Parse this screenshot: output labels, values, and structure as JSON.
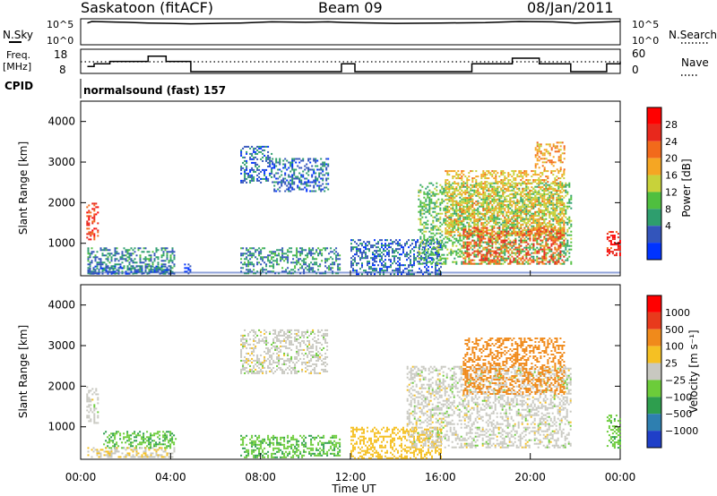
{
  "header": {
    "title": "Saskatoon (fitACF)",
    "beam": "Beam 09",
    "date": "08/Jan/2011"
  },
  "panels": {
    "nsky": {
      "label": "N.Sky",
      "ticks": [
        "10^5",
        "10^0"
      ],
      "right_label": "N.Search",
      "right_ticks": [
        "10^5",
        "10^0"
      ]
    },
    "freq": {
      "label_top": "Freq.",
      "label_bottom": "[MHz]",
      "ticks": [
        "18",
        "8"
      ],
      "right_label": "Nave",
      "right_ticks": [
        "60",
        "0"
      ]
    },
    "cpid": {
      "label": "CPID",
      "value": "normalsound (fast) 157"
    },
    "power": {
      "ylabel": "Slant Range [km]",
      "yticks": [
        "4000",
        "3000",
        "2000",
        "1000"
      ],
      "colorbar_label": "Power [dB]",
      "colorbar_ticks": [
        "28",
        "24",
        "20",
        "16",
        "12",
        "8",
        "4"
      ],
      "colors": [
        "#0033ff",
        "#3355bb",
        "#2e9e6e",
        "#4fbf3f",
        "#c8d23a",
        "#f5a623",
        "#f26a1b",
        "#e8281c",
        "#ff0000"
      ]
    },
    "velocity": {
      "ylabel": "Slant Range [km]",
      "yticks": [
        "4000",
        "3000",
        "2000",
        "1000"
      ],
      "colorbar_label": "Velocity [m s⁻¹]",
      "colorbar_ticks": [
        "1000",
        "500",
        "100",
        "25",
        "−25",
        "−100",
        "−500",
        "−1000"
      ],
      "colors": [
        "#1f3fc8",
        "#2e7fb0",
        "#2e9e4e",
        "#6ccc3a",
        "#c8c8c0",
        "#f5c023",
        "#f08a1b",
        "#e83a1c",
        "#ff0000"
      ]
    }
  },
  "xaxis": {
    "label": "Time UT",
    "ticks": [
      "00:00",
      "04:00",
      "08:00",
      "12:00",
      "16:00",
      "20:00",
      "00:00"
    ]
  },
  "chart_data": {
    "type": "heatmap",
    "title": "Saskatoon (fitACF)",
    "subtitle": "Beam 09  08/Jan/2011",
    "xlabel": "Time UT",
    "ylabel": "Slant Range [km]",
    "xlim": [
      0,
      24
    ],
    "ylim": [
      200,
      4500
    ],
    "power_range_db": [
      0,
      30
    ],
    "velocity_range_ms": [
      -1000,
      1000
    ],
    "nsky_line": [
      [
        0.3,
        5.2
      ],
      [
        0.5,
        5.6
      ],
      [
        2,
        5.4
      ],
      [
        3,
        5.2
      ],
      [
        4,
        5.1
      ],
      [
        4.9,
        5.0
      ],
      [
        7.1,
        5.2
      ],
      [
        8.5,
        5.5
      ],
      [
        10,
        5.4
      ],
      [
        11,
        5.5
      ],
      [
        12,
        5.3
      ],
      [
        14,
        5.1
      ],
      [
        16,
        5.2
      ],
      [
        18,
        5.3
      ],
      [
        19.5,
        5.6
      ],
      [
        21,
        5.5
      ],
      [
        22,
        5.2
      ],
      [
        23,
        5.4
      ],
      [
        24,
        5.6
      ]
    ],
    "freq_steps": [
      [
        0.3,
        10.6
      ],
      [
        0.6,
        12.0
      ],
      [
        1.3,
        13.2
      ],
      [
        2.6,
        13.2
      ],
      [
        3.0,
        15.8
      ],
      [
        3.8,
        13.2
      ],
      [
        4.9,
        8.0
      ],
      [
        7.1,
        8.0
      ],
      [
        9.3,
        8.0
      ],
      [
        11.6,
        12.0
      ],
      [
        12.2,
        8.0
      ],
      [
        17.4,
        12.0
      ],
      [
        19.2,
        14.8
      ],
      [
        20.4,
        12.0
      ],
      [
        21.8,
        8.0
      ],
      [
        23.4,
        12.0
      ],
      [
        24,
        13.2
      ]
    ],
    "power_regions": [
      {
        "t0": 0.25,
        "t1": 0.8,
        "r0": 1100,
        "r1": 2000,
        "level": 26
      },
      {
        "t0": 0.3,
        "t1": 4.2,
        "r0": 250,
        "r1": 900,
        "level": 8
      },
      {
        "t0": 0.3,
        "t1": 4.2,
        "r0": 250,
        "r1": 450,
        "level": 6
      },
      {
        "t0": 4.6,
        "t1": 4.9,
        "r0": 250,
        "r1": 500,
        "level": 4
      },
      {
        "t0": 7.1,
        "t1": 11.5,
        "r0": 250,
        "r1": 900,
        "level": 8
      },
      {
        "t0": 7.1,
        "t1": 8.5,
        "r0": 2500,
        "r1": 3400,
        "level": 6
      },
      {
        "t0": 8.5,
        "t1": 11.0,
        "r0": 2300,
        "r1": 3100,
        "level": 6
      },
      {
        "t0": 12.0,
        "t1": 16.0,
        "r0": 250,
        "r1": 1100,
        "level": 6
      },
      {
        "t0": 15.0,
        "t1": 21.8,
        "r0": 500,
        "r1": 2500,
        "level": 12
      },
      {
        "t0": 16.2,
        "t1": 21.5,
        "r0": 1200,
        "r1": 2800,
        "level": 18
      },
      {
        "t0": 17.0,
        "t1": 21.5,
        "r0": 500,
        "r1": 1400,
        "level": 24
      },
      {
        "t0": 20.2,
        "t1": 21.5,
        "r0": 2800,
        "r1": 3500,
        "level": 20
      },
      {
        "t0": 23.4,
        "t1": 24.0,
        "r0": 700,
        "r1": 1300,
        "level": 28
      }
    ],
    "velocity_regions": [
      {
        "t0": 0.25,
        "t1": 0.8,
        "r0": 1100,
        "r1": 2000,
        "level": 0
      },
      {
        "t0": 1.0,
        "t1": 4.2,
        "r0": 500,
        "r1": 900,
        "level": 90
      },
      {
        "t0": 0.3,
        "t1": 4.2,
        "r0": 250,
        "r1": 500,
        "level": -20
      },
      {
        "t0": 7.1,
        "t1": 11.5,
        "r0": 250,
        "r1": 800,
        "level": 90
      },
      {
        "t0": 7.1,
        "t1": 11.0,
        "r0": 2300,
        "r1": 3400,
        "level": 0
      },
      {
        "t0": 12.0,
        "t1": 16.0,
        "r0": 250,
        "r1": 1000,
        "level": -60
      },
      {
        "t0": 14.5,
        "t1": 21.8,
        "r0": 500,
        "r1": 2500,
        "level": 0
      },
      {
        "t0": 17.0,
        "t1": 21.5,
        "r0": 1800,
        "r1": 3200,
        "level": -200
      },
      {
        "t0": 23.4,
        "t1": 24.0,
        "r0": 500,
        "r1": 1300,
        "level": 80
      }
    ]
  }
}
